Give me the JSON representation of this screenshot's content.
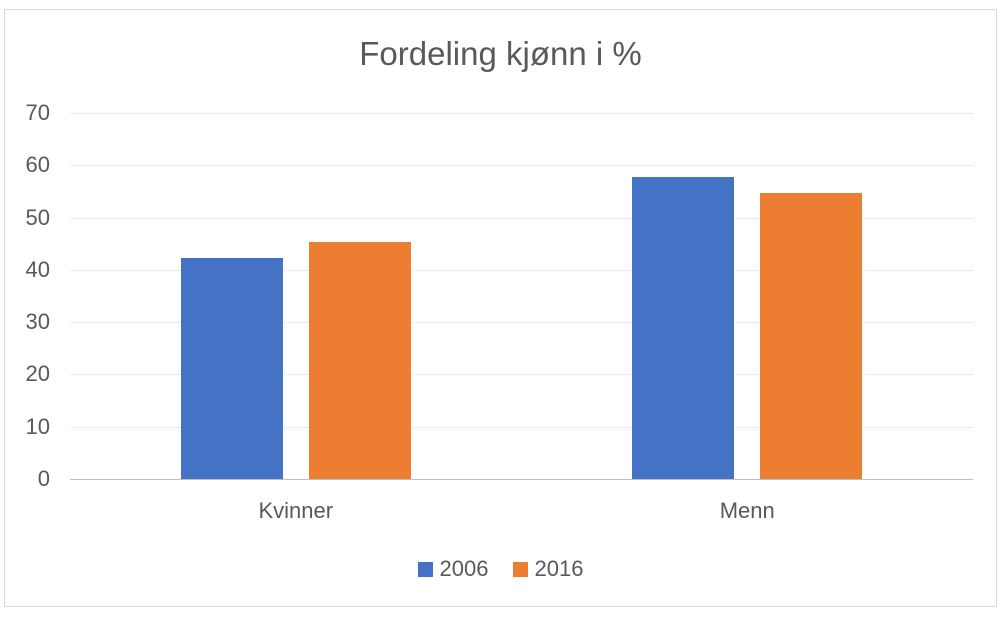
{
  "chart_data": {
    "type": "bar",
    "title": "Fordeling kjønn i %",
    "categories": [
      "Kvinner",
      "Menn"
    ],
    "series": [
      {
        "name": "2006",
        "color": "#4472C4",
        "values": [
          42.2,
          57.8
        ]
      },
      {
        "name": "2016",
        "color": "#ED7D31",
        "values": [
          45.3,
          54.7
        ]
      }
    ],
    "xlabel": "",
    "ylabel": "",
    "ylim": [
      0,
      70
    ],
    "yticks": [
      0,
      10,
      20,
      30,
      40,
      50,
      60,
      70
    ],
    "grid": true,
    "legend_position": "bottom"
  },
  "styles": {
    "text_color": "#595959",
    "gridline_color": "#D9D9D9",
    "axis_line_color": "#BFBFBF",
    "frame_border_color": "#D9D9D9",
    "background_color": "#FFFFFF"
  }
}
